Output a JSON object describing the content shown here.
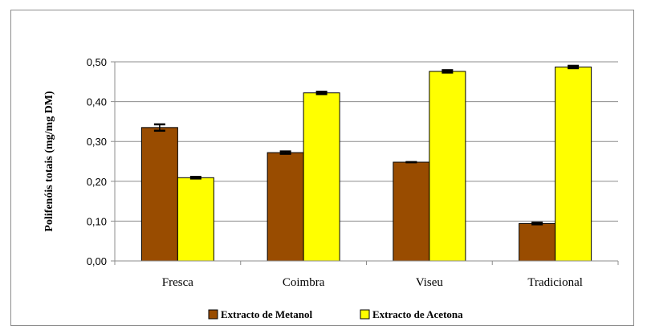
{
  "colors": {
    "metanol": "#994c00",
    "acetona": "#ffff00",
    "bar_stroke": "#000000",
    "grid": "#8c8c8c",
    "axis": "#8c8c8c"
  },
  "chart_data": {
    "type": "bar",
    "title": "",
    "xlabel": "",
    "ylabel": "Polifenóis totais (mg/mg DM)",
    "categories": [
      "Fresca",
      "Coimbra",
      "Viseu",
      "Tradicional"
    ],
    "series": [
      {
        "name": "Extracto de Metanol",
        "values": [
          0.335,
          0.272,
          0.248,
          0.094
        ],
        "errors": [
          0.008,
          0.003,
          0.0,
          0.002
        ]
      },
      {
        "name": "Extracto de Acetona",
        "values": [
          0.209,
          0.422,
          0.476,
          0.487
        ],
        "errors": [
          0.002,
          0.003,
          0.003,
          0.003
        ]
      }
    ],
    "ylim": [
      0,
      0.5
    ],
    "yticks": [
      "0,00",
      "0,10",
      "0,20",
      "0,30",
      "0,40",
      "0,50"
    ],
    "grid": true,
    "legend_position": "bottom"
  }
}
